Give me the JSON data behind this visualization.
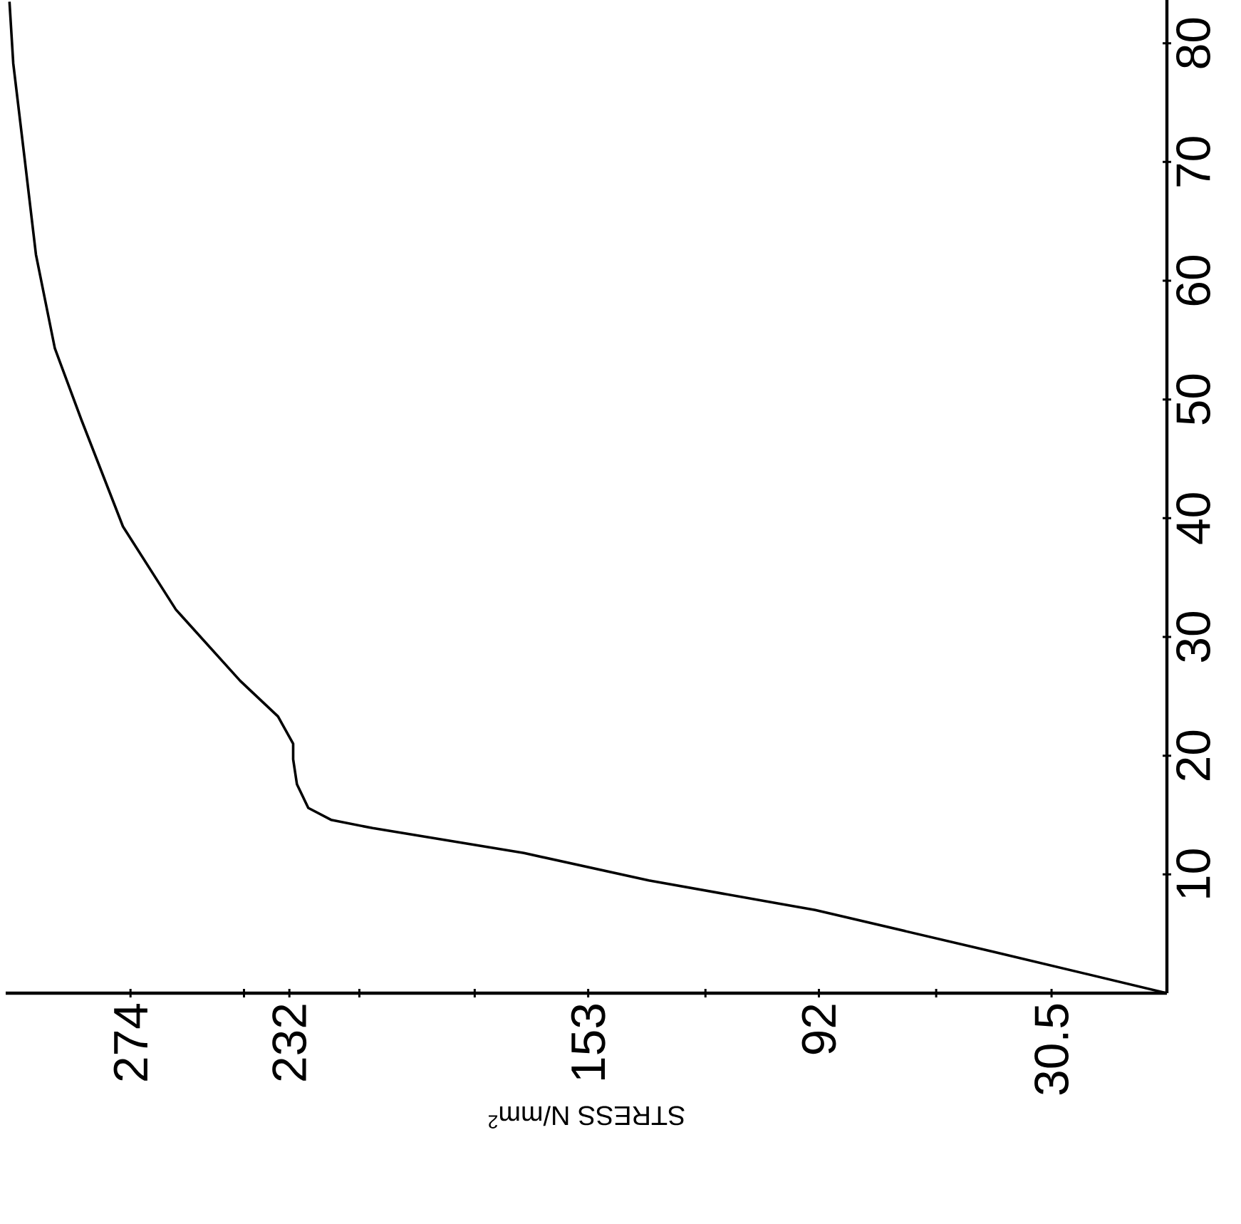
{
  "chart_data": {
    "type": "line",
    "xlabel": "STRESS N/mm$^{2}$",
    "color": "#000000",
    "x": [
      0,
      46,
      93,
      137,
      170,
      210,
      221,
      227,
      230,
      231,
      231,
      235,
      245,
      262,
      276,
      287,
      294,
      299,
      302,
      305,
      306
    ],
    "values": [
      0,
      3.5,
      7.0,
      9.5,
      11.8,
      13.9,
      14.6,
      15.6,
      17.6,
      19.7,
      21.0,
      23.3,
      26.3,
      32.3,
      39.3,
      48.3,
      54.3,
      62.2,
      70.3,
      78.3,
      83.5
    ],
    "xlim": [
      307,
      0
    ],
    "ylim": [
      0,
      84
    ],
    "xticks": [
      30.5,
      {
        "value": 61,
        "label": null
      },
      92,
      {
        "value": 122,
        "label": null
      },
      153,
      {
        "value": 183,
        "label": null
      },
      {
        "value": 213.5,
        "label": null
      },
      232,
      {
        "value": 244,
        "label": null
      },
      274
    ],
    "yticks": [
      10,
      20,
      30,
      40,
      50,
      60,
      70,
      80
    ]
  }
}
